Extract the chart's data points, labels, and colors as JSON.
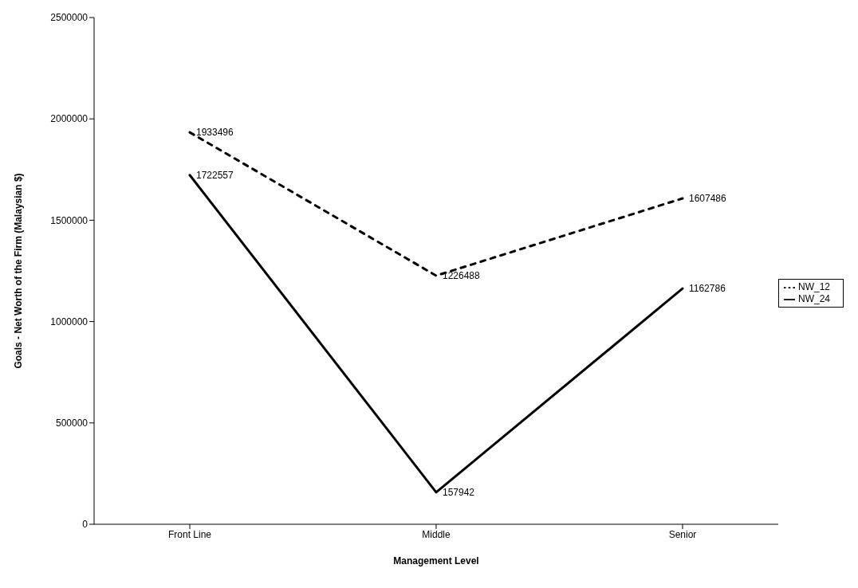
{
  "chart_data": {
    "type": "line",
    "xlabel": "Management Level",
    "ylabel": "Goals - Net Worth of the Firm (Malaysian $)",
    "categories": [
      "Front Line",
      "Middle",
      "Senior"
    ],
    "series": [
      {
        "name": "NW_12",
        "color": "#000000",
        "line_style": "dashed",
        "values": [
          1933496,
          1226488,
          1607486
        ]
      },
      {
        "name": "NW_24",
        "color": "#000000",
        "line_style": "solid",
        "values": [
          1722557,
          157942,
          1162786
        ]
      }
    ],
    "ylim": [
      0,
      2500000
    ],
    "yticks": [
      0,
      500000,
      1000000,
      1500000,
      2000000,
      2500000
    ],
    "grid": false,
    "legend": "right",
    "marker": "none",
    "data_labels": true
  }
}
